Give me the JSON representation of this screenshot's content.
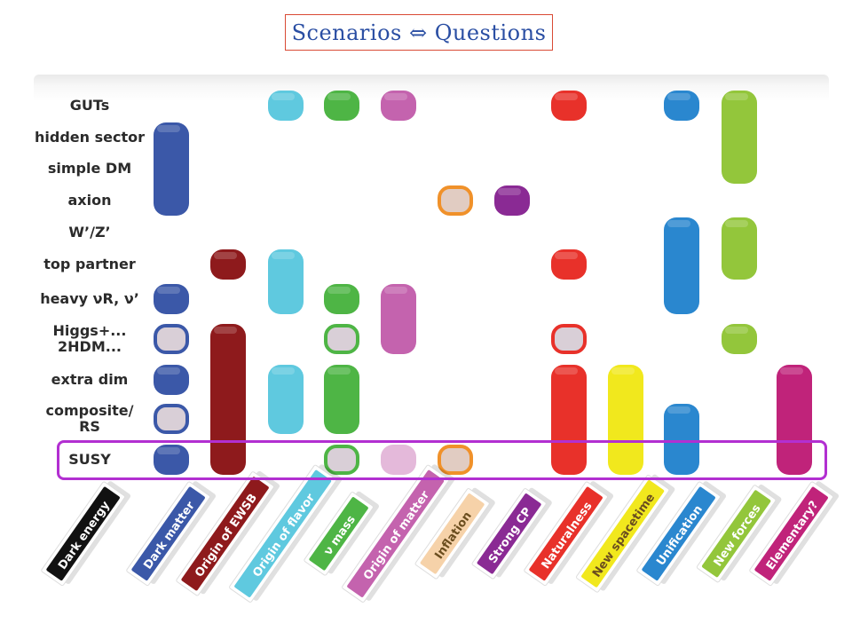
{
  "title": "Scenarios ⇔ Questions",
  "rows": [
    {
      "lines": [
        "GUTs"
      ]
    },
    {
      "lines": [
        "hidden sector"
      ]
    },
    {
      "lines": [
        "simple DM"
      ]
    },
    {
      "lines": [
        "axion"
      ]
    },
    {
      "lines": [
        "W’/Z’"
      ]
    },
    {
      "lines": [
        "top  partner"
      ]
    },
    {
      "lines": [
        "heavy νR, ν’"
      ]
    },
    {
      "lines": [
        "Higgs+...",
        "2HDM..."
      ]
    },
    {
      "lines": [
        "extra dim"
      ]
    },
    {
      "lines": [
        "composite/",
        "RS"
      ]
    },
    {
      "lines": [
        "SUSY"
      ]
    }
  ],
  "columns": [
    {
      "label": "Dark energy",
      "color": "#111111"
    },
    {
      "label": "Dark matter",
      "color": "#3b58a8"
    },
    {
      "label": "Origin of EWSB",
      "color": "#8e1a1c"
    },
    {
      "label": "Origin of flavor",
      "color": "#5fc9df"
    },
    {
      "label": "ν mass",
      "color": "#4eb545"
    },
    {
      "label": "Origin of matter",
      "color": "#c463ae"
    },
    {
      "label": "Inflation",
      "color": "#f6d2a9"
    },
    {
      "label": "Strong CP",
      "color": "#8a2a94"
    },
    {
      "label": "Naturalness",
      "color": "#e8312a"
    },
    {
      "label": "New spacetime",
      "color": "#f1e81d"
    },
    {
      "label": "Unification",
      "color": "#2a87cf"
    },
    {
      "label": "New forces",
      "color": "#93c63b"
    },
    {
      "label": "Elementary?",
      "color": "#c0237a"
    }
  ],
  "highlighted_row": "SUSY",
  "cells": [
    {
      "col": 1,
      "rows": [
        1,
        3
      ],
      "style": "solid"
    },
    {
      "col": 1,
      "rows": [
        6,
        6
      ],
      "style": "solid"
    },
    {
      "col": 1,
      "rows": [
        7,
        7
      ],
      "style": "outline"
    },
    {
      "col": 1,
      "rows": [
        8,
        8
      ],
      "style": "solid"
    },
    {
      "col": 1,
      "rows": [
        9,
        9
      ],
      "style": "outline"
    },
    {
      "col": 1,
      "rows": [
        10,
        10
      ],
      "style": "solid"
    },
    {
      "col": 2,
      "rows": [
        5,
        5
      ],
      "style": "solid"
    },
    {
      "col": 2,
      "rows": [
        7,
        10
      ],
      "style": "solid"
    },
    {
      "col": 3,
      "rows": [
        0,
        0
      ],
      "style": "solid"
    },
    {
      "col": 3,
      "rows": [
        5,
        6
      ],
      "style": "solid"
    },
    {
      "col": 3,
      "rows": [
        8,
        9
      ],
      "style": "solid"
    },
    {
      "col": 4,
      "rows": [
        0,
        0
      ],
      "style": "solid"
    },
    {
      "col": 4,
      "rows": [
        6,
        6
      ],
      "style": "solid"
    },
    {
      "col": 4,
      "rows": [
        7,
        7
      ],
      "style": "outline"
    },
    {
      "col": 4,
      "rows": [
        8,
        9
      ],
      "style": "solid"
    },
    {
      "col": 4,
      "rows": [
        10,
        10
      ],
      "style": "outline"
    },
    {
      "col": 5,
      "rows": [
        0,
        0
      ],
      "style": "solid"
    },
    {
      "col": 5,
      "rows": [
        6,
        7
      ],
      "style": "solid"
    },
    {
      "col": 5,
      "rows": [
        10,
        10
      ],
      "style": "faded"
    },
    {
      "col": 6,
      "rows": [
        3,
        3
      ],
      "style": "outline-orange"
    },
    {
      "col": 6,
      "rows": [
        10,
        10
      ],
      "style": "outline-orange"
    },
    {
      "col": 7,
      "rows": [
        3,
        3
      ],
      "style": "solid"
    },
    {
      "col": 8,
      "rows": [
        0,
        0
      ],
      "style": "solid"
    },
    {
      "col": 8,
      "rows": [
        5,
        5
      ],
      "style": "solid"
    },
    {
      "col": 8,
      "rows": [
        7,
        7
      ],
      "style": "outline"
    },
    {
      "col": 8,
      "rows": [
        8,
        10
      ],
      "style": "solid"
    },
    {
      "col": 9,
      "rows": [
        8,
        10
      ],
      "style": "solid"
    },
    {
      "col": 10,
      "rows": [
        0,
        0
      ],
      "style": "solid"
    },
    {
      "col": 10,
      "rows": [
        4,
        6
      ],
      "style": "solid"
    },
    {
      "col": 10,
      "rows": [
        9,
        10
      ],
      "style": "solid"
    },
    {
      "col": 11,
      "rows": [
        0,
        2
      ],
      "style": "solid"
    },
    {
      "col": 11,
      "rows": [
        4,
        5
      ],
      "style": "solid"
    },
    {
      "col": 11,
      "rows": [
        7,
        7
      ],
      "style": "solid"
    },
    {
      "col": 12,
      "rows": [
        8,
        10
      ],
      "style": "solid"
    }
  ]
}
